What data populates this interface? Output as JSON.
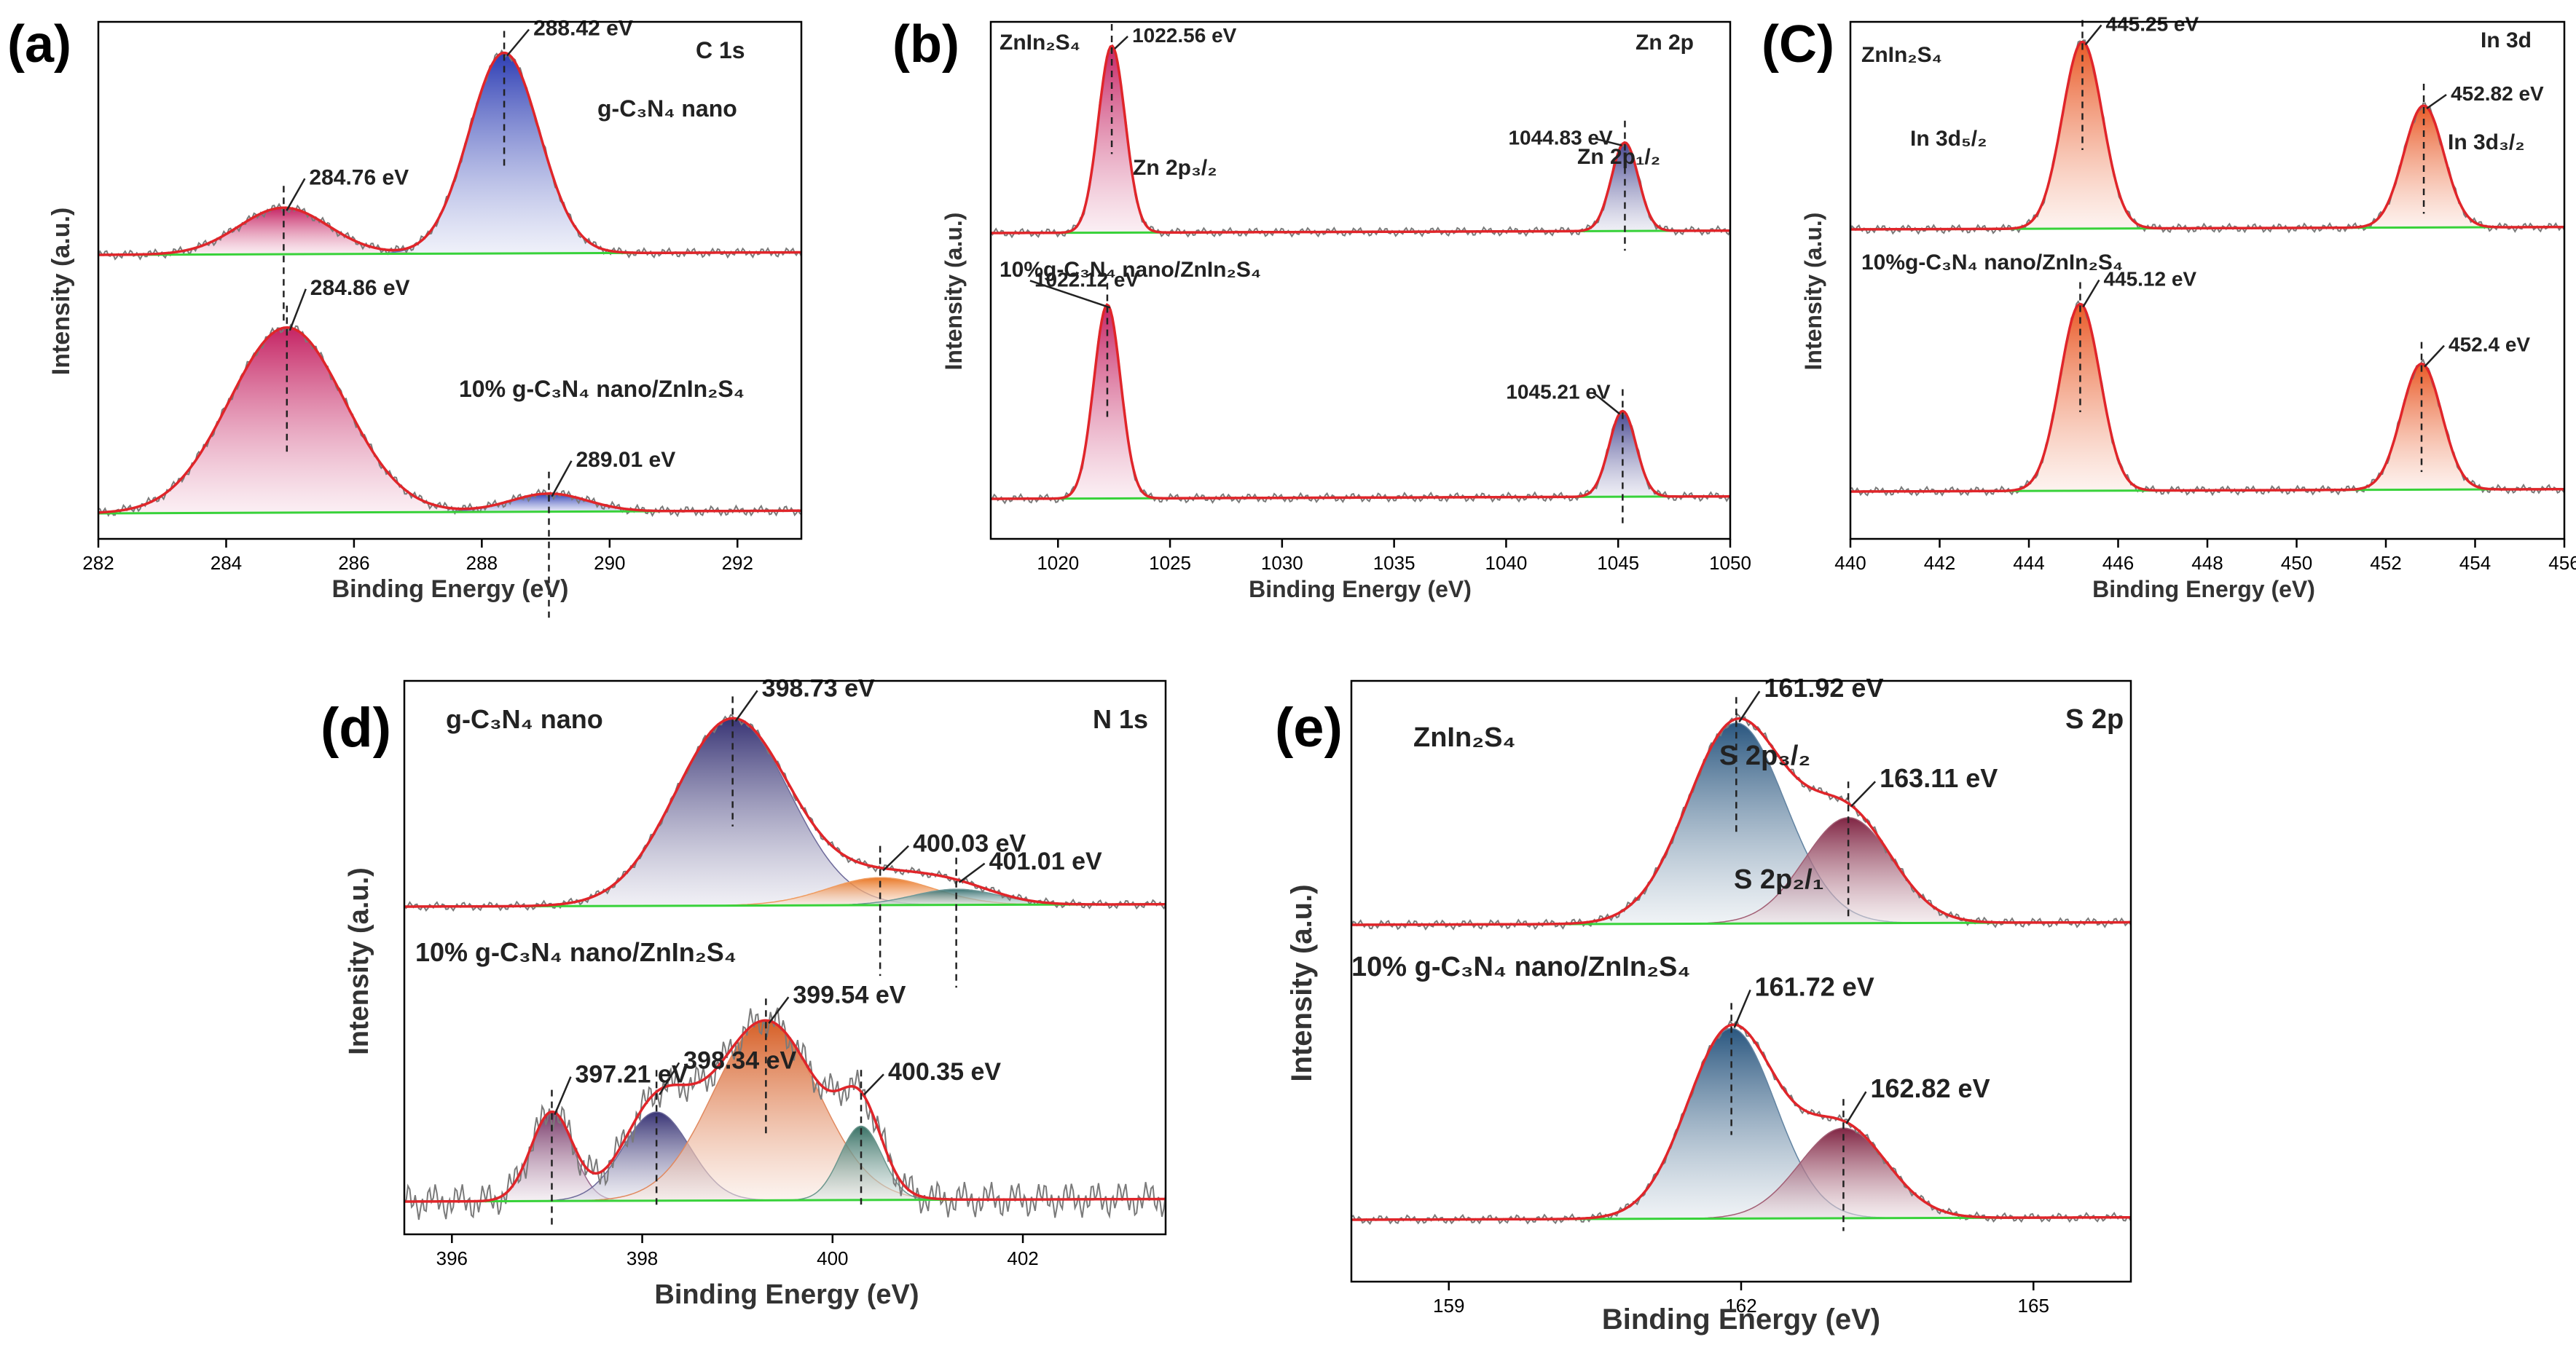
{
  "figure": {
    "panels": [
      {
        "id": "a",
        "letter": "(a)",
        "core_level": "C 1s",
        "xlabel": "Binding Energy (eV)",
        "ylabel": "Intensity (a.u.)",
        "xlim": [
          282,
          293
        ],
        "ticks": [
          "282",
          "284",
          "286",
          "288",
          "290",
          "292"
        ],
        "tick_values": [
          282,
          284,
          286,
          288,
          290,
          292
        ],
        "spectra": [
          {
            "sample": "g-C₃N₄  nano",
            "peaks": [
              {
                "center": 284.9,
                "height": 0.22,
                "width": 0.7,
                "color": "#c2185b",
                "label": "284.76 eV"
              },
              {
                "center": 288.35,
                "height": 0.95,
                "width": 0.55,
                "color": "#2233b0",
                "label": "288.42 eV"
              }
            ]
          },
          {
            "sample": "10% g-C₃N₄ nano/ZnIn₂S₄",
            "peaks": [
              {
                "center": 284.95,
                "height": 0.82,
                "width": 0.9,
                "color": "#c2185b",
                "label": "284.86 eV"
              },
              {
                "center": 289.05,
                "height": 0.08,
                "width": 0.6,
                "color": "#2233b0",
                "label": "289.01 eV"
              }
            ]
          }
        ]
      },
      {
        "id": "b",
        "letter": "(b)",
        "core_level": "Zn 2p",
        "xlabel": "Binding Energy (eV)",
        "ylabel": "Intensity (a.u.)",
        "xlim": [
          1017,
          1050
        ],
        "ticks": [
          "1020",
          "1025",
          "1030",
          "1035",
          "1040",
          "1045",
          "1050"
        ],
        "tick_values": [
          1020,
          1025,
          1030,
          1035,
          1040,
          1045,
          1050
        ],
        "spectra": [
          {
            "sample": "ZnIn₂S₄",
            "subpeak_labels": [
              "Zn 2p₃/₂",
              "Zn 2p₁/₂"
            ],
            "peaks": [
              {
                "center": 1022.4,
                "height": 0.95,
                "width": 0.6,
                "color": "#c2185b",
                "label": "1022.56 eV"
              },
              {
                "center": 1045.3,
                "height": 0.45,
                "width": 0.6,
                "color": "#3b3b8a",
                "label": "1044.83 eV"
              }
            ]
          },
          {
            "sample": "10%g-C₃N₄ nano/ZnIn₂S₄",
            "peaks": [
              {
                "center": 1022.2,
                "height": 0.95,
                "width": 0.6,
                "color": "#c2185b",
                "label": "1022.12 eV"
              },
              {
                "center": 1045.2,
                "height": 0.42,
                "width": 0.6,
                "color": "#3b3b8a",
                "label": "1045.21 eV"
              }
            ]
          }
        ]
      },
      {
        "id": "c",
        "letter": "(C)",
        "core_level": "In 3d",
        "xlabel": "Binding Energy (eV)",
        "ylabel": "Intensity (a.u.)",
        "xlim": [
          440,
          456
        ],
        "ticks": [
          "440",
          "442",
          "444",
          "446",
          "448",
          "450",
          "452",
          "454",
          "456"
        ],
        "tick_values": [
          440,
          442,
          444,
          446,
          448,
          450,
          452,
          454,
          456
        ],
        "spectra": [
          {
            "sample": "ZnIn₂S₄",
            "subpeak_labels": [
              "In 3d₅/₂",
              "In 3d₃/₂"
            ],
            "peaks": [
              {
                "center": 445.2,
                "height": 0.95,
                "width": 0.45,
                "color": "#e8501a",
                "label": "445.25 eV"
              },
              {
                "center": 452.85,
                "height": 0.62,
                "width": 0.45,
                "color": "#e8501a",
                "label": "452.82 eV"
              }
            ]
          },
          {
            "sample": "10%g-C₃N₄ nano/ZnIn₂S₄",
            "peaks": [
              {
                "center": 445.15,
                "height": 0.95,
                "width": 0.45,
                "color": "#e8501a",
                "label": "445.12 eV"
              },
              {
                "center": 452.8,
                "height": 0.64,
                "width": 0.45,
                "color": "#e8501a",
                "label": "452.4 eV"
              }
            ]
          }
        ]
      },
      {
        "id": "d",
        "letter": "(d)",
        "core_level": "N 1s",
        "xlabel": "Binding Energy (eV)",
        "ylabel": "Intensity (a.u.)",
        "xlim": [
          395.5,
          403.5
        ],
        "ticks": [
          "396",
          "398",
          "400",
          "402"
        ],
        "tick_values": [
          396,
          398,
          400,
          402
        ],
        "spectra": [
          {
            "sample": "g-C₃N₄ nano",
            "peaks": [
              {
                "center": 398.95,
                "height": 0.95,
                "width": 0.6,
                "color": "#2e2a6e",
                "label": "398.73 eV"
              },
              {
                "center": 400.5,
                "height": 0.14,
                "width": 0.55,
                "color": "#e8701a",
                "label": "400.03 eV"
              },
              {
                "center": 401.3,
                "height": 0.08,
                "width": 0.45,
                "color": "#2f6b6b",
                "label": "401.01 eV"
              }
            ]
          },
          {
            "sample": "10% g-C₃N₄ nano/ZnIn₂S₄",
            "peaks": [
              {
                "center": 397.05,
                "height": 0.42,
                "width": 0.22,
                "color": "#6e2a5e",
                "label": "397.21 eV"
              },
              {
                "center": 398.15,
                "height": 0.42,
                "width": 0.35,
                "color": "#2e2a6e",
                "label": "398.34 eV"
              },
              {
                "center": 399.3,
                "height": 0.85,
                "width": 0.55,
                "color": "#d4561a",
                "label": "399.54 eV"
              },
              {
                "center": 400.3,
                "height": 0.35,
                "width": 0.22,
                "color": "#2f6b5e",
                "label": "400.35 eV"
              }
            ]
          }
        ]
      },
      {
        "id": "e",
        "letter": "(e)",
        "core_level": "S 2p",
        "xlabel": "Binding Energy (eV)",
        "ylabel": "Intensity (a.u.)",
        "xlim": [
          158,
          166
        ],
        "ticks": [
          "159",
          "162",
          "165"
        ],
        "tick_values": [
          159,
          162,
          165
        ],
        "spectra": [
          {
            "sample": "ZnIn₂S₄",
            "subpeak_labels": [
              "S 2p₃/₂",
              "S 2p₂/₁"
            ],
            "peaks": [
              {
                "center": 161.95,
                "height": 0.95,
                "width": 0.5,
                "color": "#1f4e79",
                "label": "161.92 eV"
              },
              {
                "center": 163.1,
                "height": 0.5,
                "width": 0.45,
                "color": "#7a1a3a",
                "label": "163.11 eV"
              }
            ]
          },
          {
            "sample": "10% g-C₃N₄ nano/ZnIn₂S₄",
            "peaks": [
              {
                "center": 161.9,
                "height": 0.95,
                "width": 0.45,
                "color": "#1f4e79",
                "label": "161.72 eV"
              },
              {
                "center": 163.05,
                "height": 0.45,
                "width": 0.45,
                "color": "#7a1a3a",
                "label": "162.82 eV"
              }
            ]
          }
        ]
      }
    ]
  },
  "chart_data": [
    {
      "type": "line",
      "title": "(a) C 1s",
      "xlabel": "Binding Energy (eV)",
      "ylabel": "Intensity (a.u.)",
      "xlim": [
        282,
        293
      ],
      "series": [
        {
          "name": "g-C₃N₄ nano",
          "peak_positions_eV": [
            284.76,
            288.42
          ]
        },
        {
          "name": "10% g-C₃N₄ nano/ZnIn₂S₄",
          "peak_positions_eV": [
            284.86,
            289.01
          ]
        }
      ]
    },
    {
      "type": "line",
      "title": "(b) Zn 2p",
      "xlabel": "Binding Energy (eV)",
      "ylabel": "Intensity (a.u.)",
      "xlim": [
        1017,
        1050
      ],
      "series": [
        {
          "name": "ZnIn₂S₄",
          "peak_positions_eV": [
            1022.56,
            1044.83
          ]
        },
        {
          "name": "10%g-C₃N₄ nano/ZnIn₂S₄",
          "peak_positions_eV": [
            1022.12,
            1045.21
          ]
        }
      ]
    },
    {
      "type": "line",
      "title": "(C) In 3d",
      "xlabel": "Binding Energy (eV)",
      "ylabel": "Intensity (a.u.)",
      "xlim": [
        440,
        456
      ],
      "series": [
        {
          "name": "ZnIn₂S₄",
          "peak_positions_eV": [
            445.25,
            452.82
          ]
        },
        {
          "name": "10%g-C₃N₄ nano/ZnIn₂S₄",
          "peak_positions_eV": [
            445.12,
            452.4
          ]
        }
      ]
    },
    {
      "type": "line",
      "title": "(d) N 1s",
      "xlabel": "Binding Energy (eV)",
      "ylabel": "Intensity (a.u.)",
      "xlim": [
        395.5,
        403.5
      ],
      "series": [
        {
          "name": "g-C₃N₄ nano",
          "peak_positions_eV": [
            398.73,
            400.03,
            401.01
          ]
        },
        {
          "name": "10% g-C₃N₄ nano/ZnIn₂S₄",
          "peak_positions_eV": [
            397.21,
            398.34,
            399.54,
            400.35
          ]
        }
      ]
    },
    {
      "type": "line",
      "title": "(e) S 2p",
      "xlabel": "Binding Energy (eV)",
      "ylabel": "Intensity (a.u.)",
      "xlim": [
        158,
        166
      ],
      "series": [
        {
          "name": "ZnIn₂S₄",
          "peak_positions_eV": [
            161.92,
            163.11
          ]
        },
        {
          "name": "10% g-C₃N₄ nano/ZnIn₂S₄",
          "peak_positions_eV": [
            161.72,
            162.82
          ]
        }
      ]
    }
  ]
}
